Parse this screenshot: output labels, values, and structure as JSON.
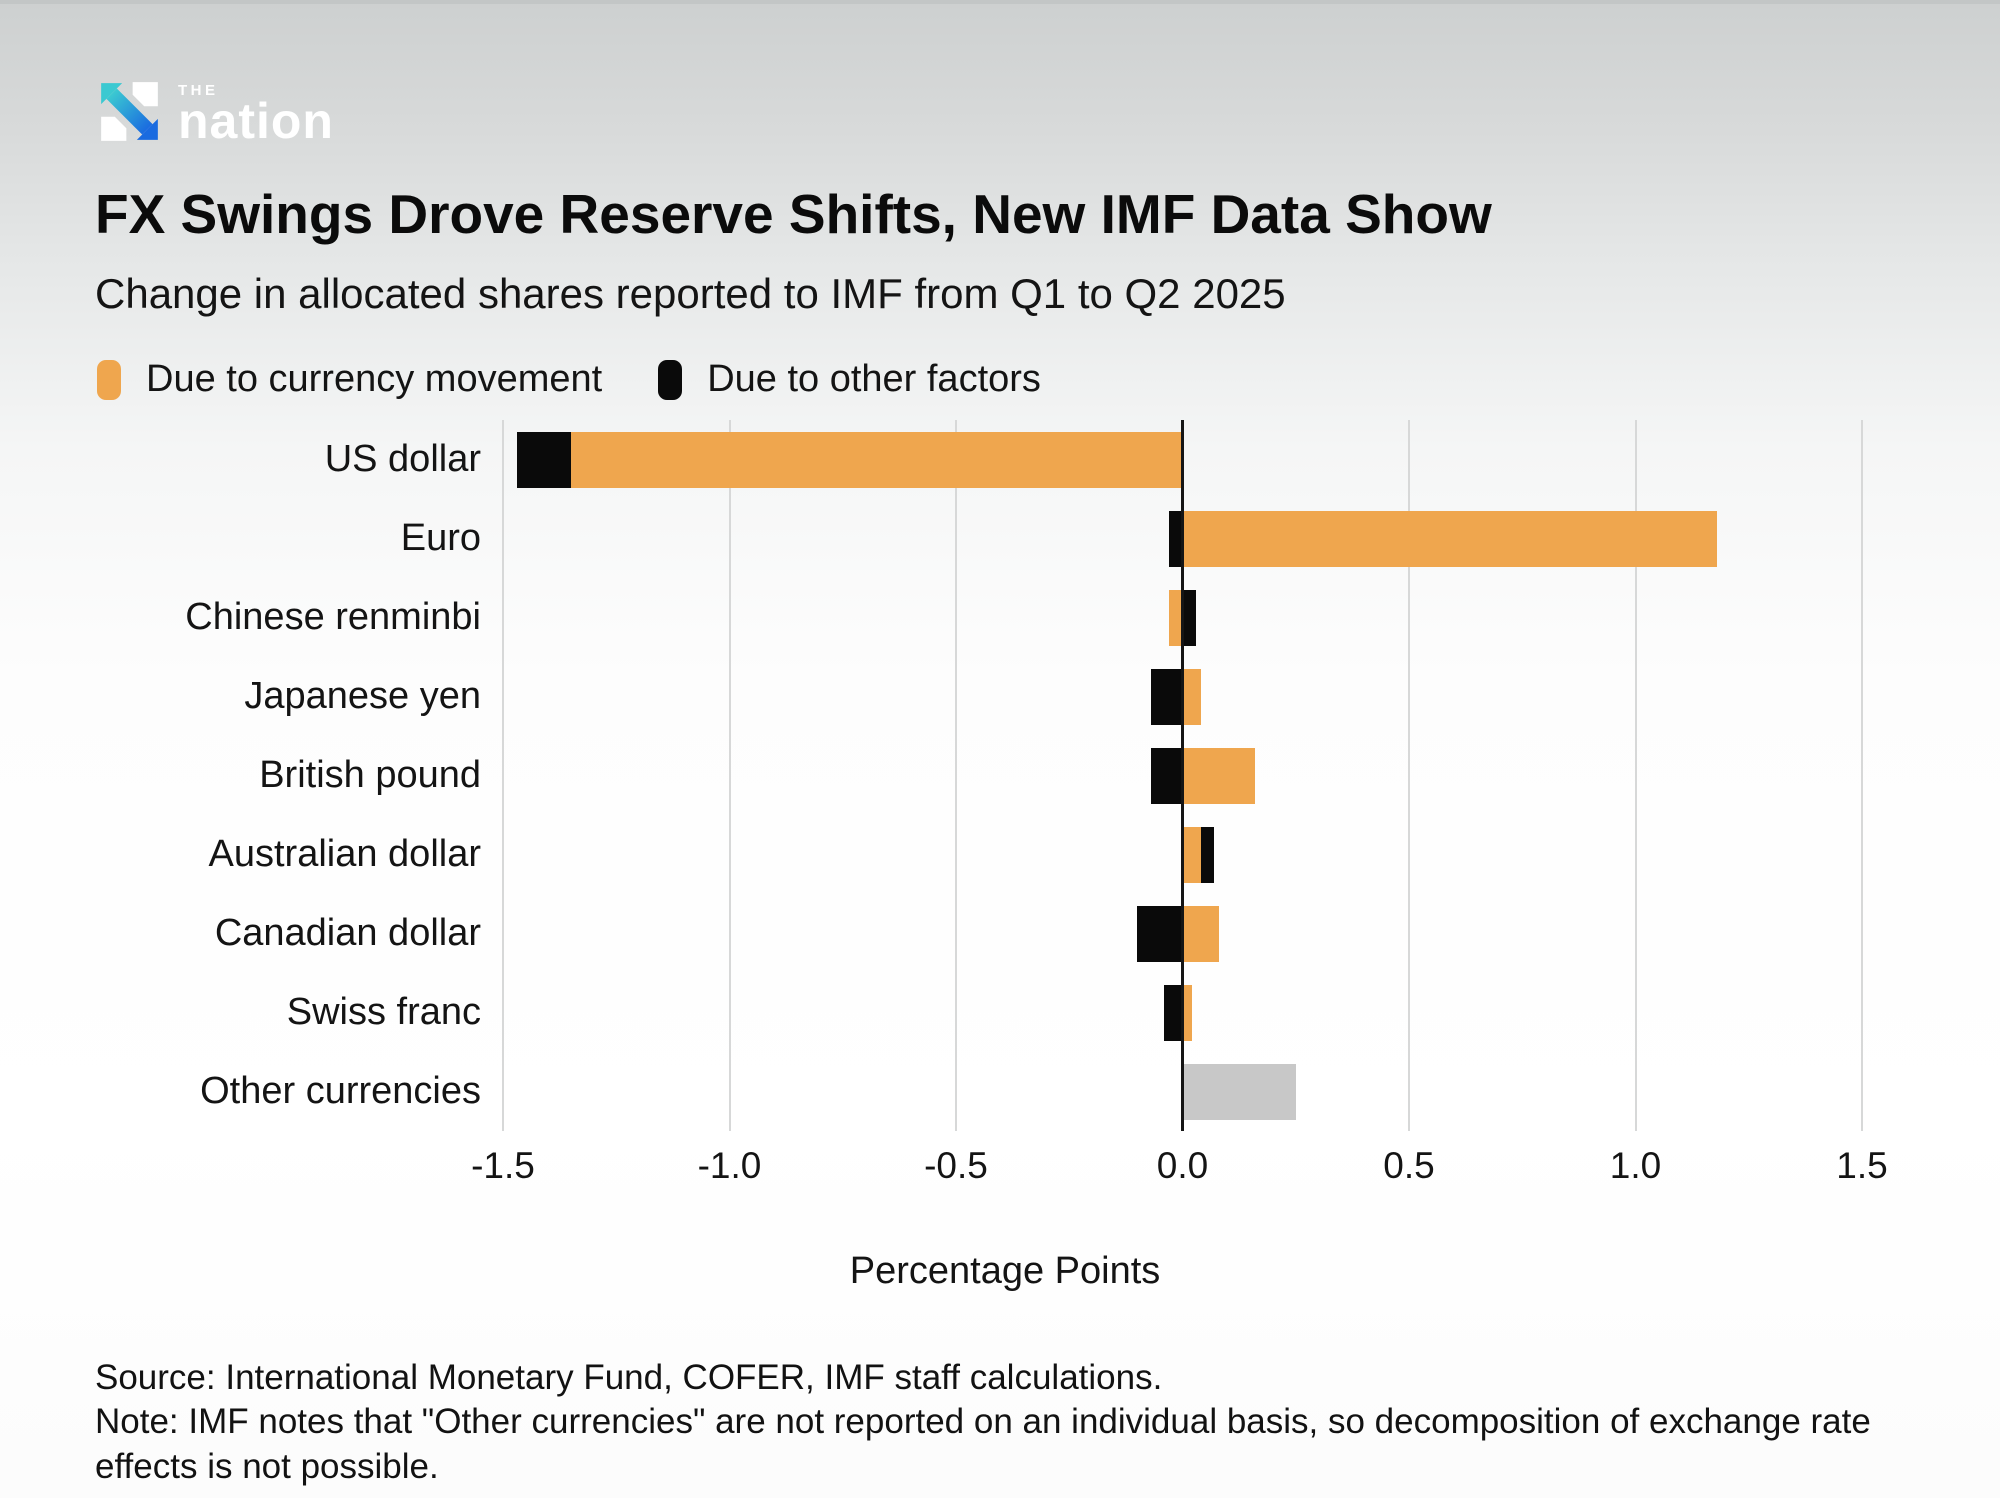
{
  "brand": {
    "the": "THE",
    "name": "nation",
    "icon_teal": "#3BC9D1",
    "icon_blue": "#1A6BE0"
  },
  "legend": [
    {
      "key": "currency",
      "label": "Due to currency movement",
      "color": "#EFA64E"
    },
    {
      "key": "other",
      "label": "Due to other factors",
      "color": "#0A0A0A"
    }
  ],
  "chart_data": {
    "type": "bar",
    "orientation": "horizontal",
    "stacked": true,
    "title": "FX Swings Drove Reserve Shifts, New IMF Data Show",
    "subtitle": "Change in allocated shares reported to IMF from Q1 to Q2 2025",
    "xlabel": "Percentage Points",
    "ylabel": "",
    "xlim": [
      -1.5,
      1.5
    ],
    "ticks": [
      "-1.5",
      "-1.0",
      "-0.5",
      "0.0",
      "0.5",
      "1.0",
      "1.5"
    ],
    "grid": true,
    "legend_position": "top",
    "zero_line": true,
    "categories": [
      "US dollar",
      "Euro",
      "Chinese renminbi",
      "Japanese yen",
      "British pound",
      "Australian dollar",
      "Canadian dollar",
      "Swiss franc",
      "Other currencies"
    ],
    "series": [
      {
        "key": "currency",
        "name": "Due to currency movement",
        "color": "#EFA64E",
        "values": [
          -1.35,
          1.18,
          -0.03,
          0.04,
          0.16,
          0.04,
          0.08,
          0.02,
          null
        ]
      },
      {
        "key": "other",
        "name": "Due to other factors",
        "color": "#0A0A0A",
        "values": [
          -0.12,
          -0.03,
          0.03,
          -0.07,
          -0.07,
          0.03,
          -0.1,
          -0.04,
          null
        ]
      },
      {
        "key": "unallocated",
        "name": "",
        "color": "#C8C8C8",
        "values": [
          null,
          null,
          null,
          null,
          null,
          null,
          null,
          null,
          0.25
        ]
      }
    ]
  },
  "footer": {
    "source": "Source: International Monetary Fund, COFER, IMF staff calculations.",
    "note": "Note: IMF notes that \"Other currencies\" are not reported on an individual basis, so decomposition of exchange rate effects is not possible."
  }
}
